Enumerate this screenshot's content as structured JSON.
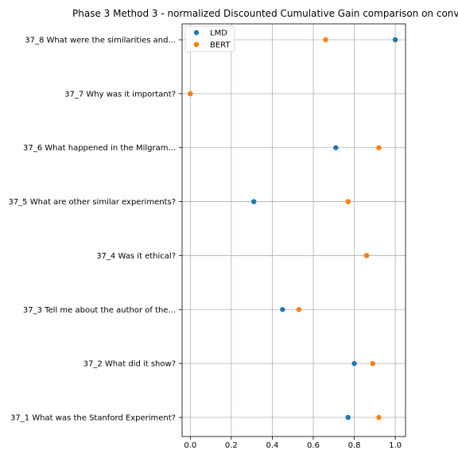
{
  "chart_data": {
    "type": "scatter",
    "title": "Phase 3 Method 3 - normalized Discounted Cumulative Gain comparison on conv",
    "xlabel": "",
    "ylabel": "",
    "xlim": [
      -0.04,
      1.05
    ],
    "x_ticks": [
      "0.0",
      "0.2",
      "0.4",
      "0.6",
      "0.8",
      "1.0"
    ],
    "x_tick_values": [
      0.0,
      0.2,
      0.4,
      0.6,
      0.8,
      1.0
    ],
    "categories": [
      "37_1 What was the Stanford Experiment?",
      "37_2 What did it show?",
      "37_3 Tell me about the author of the...",
      "37_4 Was it ethical?",
      "37_5 What are other similar experiments?",
      "37_6 What happened in the Milgram...",
      "37_7 Why was it important?",
      "37_8 What were the similarities and..."
    ],
    "series": [
      {
        "name": "LMD",
        "color": "#1f77b4",
        "values": [
          0.77,
          0.8,
          0.45,
          0.86,
          0.31,
          0.71,
          0.0,
          1.0
        ]
      },
      {
        "name": "BERT",
        "color": "#ff7f0e",
        "values": [
          0.92,
          0.89,
          0.53,
          0.86,
          0.77,
          0.92,
          0.0,
          0.66
        ]
      }
    ],
    "grid": true,
    "legend": "top-left"
  }
}
